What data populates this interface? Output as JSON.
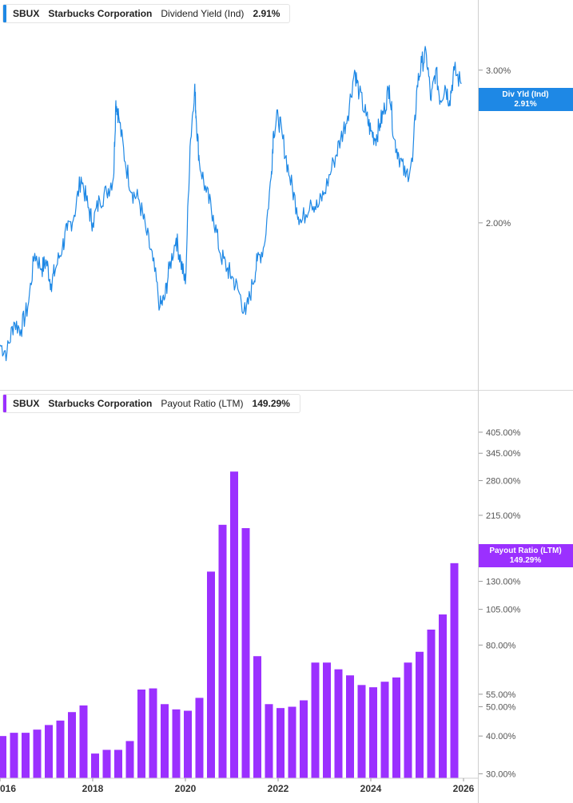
{
  "chart_data": [
    {
      "type": "line",
      "legend": {
        "ticker": "SBUX",
        "company": "Starbucks Corporation",
        "metric": "Dividend Yield (Ind)",
        "value": "2.91%"
      },
      "tag": {
        "label": "Div Yld (Ind)",
        "value": "2.91%"
      },
      "color": "#1e88e5",
      "y_ticks": [
        "3.00%",
        "2.00%"
      ],
      "y_tick_values": [
        3.0,
        2.0
      ],
      "ylim": [
        1.0,
        3.25
      ],
      "xlim": [
        2016.0,
        2026.0
      ],
      "series": [
        {
          "x": [
            2016.0,
            2016.15,
            2016.3,
            2016.45,
            2016.6,
            2016.75,
            2016.9,
            2017.0,
            2017.1,
            2017.2,
            2017.35,
            2017.45,
            2017.6,
            2017.75,
            2017.9,
            2018.0,
            2018.15,
            2018.3,
            2018.45,
            2018.5,
            2018.56,
            2018.7,
            2018.85,
            2019.0,
            2019.15,
            2019.3,
            2019.45,
            2019.55,
            2019.65,
            2019.8,
            2019.9,
            2020.0,
            2020.1,
            2020.2,
            2020.23,
            2020.3,
            2020.45,
            2020.6,
            2020.75,
            2020.9,
            2021.0,
            2021.15,
            2021.3,
            2021.45,
            2021.55,
            2021.7,
            2021.85,
            2021.9,
            2022.0,
            2022.1,
            2022.25,
            2022.4,
            2022.5,
            2022.7,
            2022.85,
            2023.0,
            2023.2,
            2023.35,
            2023.5,
            2023.65,
            2023.75,
            2023.9,
            2024.0,
            2024.1,
            2024.2,
            2024.3,
            2024.4,
            2024.5,
            2024.6,
            2024.75,
            2024.9,
            2025.0,
            2025.1,
            2025.2,
            2025.3,
            2025.4,
            2025.5,
            2025.6,
            2025.7,
            2025.8,
            2025.95
          ],
          "y": [
            1.2,
            1.15,
            1.35,
            1.3,
            1.45,
            1.8,
            1.7,
            1.75,
            1.6,
            1.7,
            1.85,
            1.95,
            2.05,
            2.3,
            2.1,
            2.0,
            2.15,
            2.2,
            2.3,
            2.8,
            2.7,
            2.4,
            2.2,
            2.15,
            1.95,
            1.75,
            1.45,
            1.5,
            1.7,
            1.9,
            1.75,
            1.6,
            2.5,
            2.9,
            2.7,
            2.4,
            2.2,
            2.05,
            1.8,
            1.7,
            1.65,
            1.55,
            1.4,
            1.6,
            1.75,
            1.85,
            2.3,
            2.6,
            2.7,
            2.55,
            2.3,
            2.1,
            2.0,
            2.15,
            2.1,
            2.2,
            2.4,
            2.55,
            2.7,
            3.0,
            2.85,
            2.7,
            2.6,
            2.55,
            2.65,
            2.75,
            2.9,
            2.55,
            2.45,
            2.3,
            2.4,
            2.9,
            3.05,
            3.1,
            2.8,
            3.0,
            2.8,
            2.9,
            2.8,
            3.0,
            2.91
          ]
        }
      ]
    },
    {
      "type": "bar",
      "legend": {
        "ticker": "SBUX",
        "company": "Starbucks Corporation",
        "metric": "Payout Ratio (LTM)",
        "value": "149.29%"
      },
      "tag": {
        "label": "Payout Ratio (LTM)",
        "value": "149.29%"
      },
      "color": "#9b30ff",
      "y_scale": "log",
      "y_ticks": [
        "405.00%",
        "345.00%",
        "280.00%",
        "215.00%",
        "130.00%",
        "105.00%",
        "80.00%",
        "55.00%",
        "50.00%",
        "40.00%",
        "30.00%"
      ],
      "y_tick_values": [
        405,
        345,
        280,
        215,
        130,
        105,
        80,
        55,
        50,
        40,
        30
      ],
      "ylim": [
        29,
        480
      ],
      "x_ticks": [
        "016",
        "2018",
        "2020",
        "2022",
        "2024",
        "2026"
      ],
      "x_tick_values": [
        2016.0,
        2018.0,
        2020.0,
        2022.0,
        2024.0,
        2026.0
      ],
      "xlim": [
        2016.0,
        2026.0
      ],
      "x": [
        2016.0,
        2016.25,
        2016.5,
        2016.75,
        2017.0,
        2017.25,
        2017.5,
        2017.75,
        2018.0,
        2018.25,
        2018.5,
        2018.75,
        2019.0,
        2019.25,
        2019.5,
        2019.75,
        2020.0,
        2020.25,
        2020.5,
        2020.75,
        2021.0,
        2021.25,
        2021.5,
        2021.75,
        2022.0,
        2022.25,
        2022.5,
        2022.75,
        2023.0,
        2023.25,
        2023.5,
        2023.75,
        2024.0,
        2024.25,
        2024.5,
        2024.75,
        2025.0,
        2025.25,
        2025.5,
        2025.75
      ],
      "values": [
        40,
        41,
        41,
        42,
        43.5,
        45,
        48,
        50.5,
        35,
        36,
        36,
        38.5,
        57,
        57.5,
        51,
        49,
        48.5,
        53.5,
        140,
        200,
        300,
        195,
        73.5,
        51,
        49.5,
        50,
        52.5,
        70,
        70,
        66.5,
        63.5,
        59,
        58,
        60.5,
        62.5,
        70,
        76,
        90,
        101,
        149.29
      ]
    }
  ]
}
